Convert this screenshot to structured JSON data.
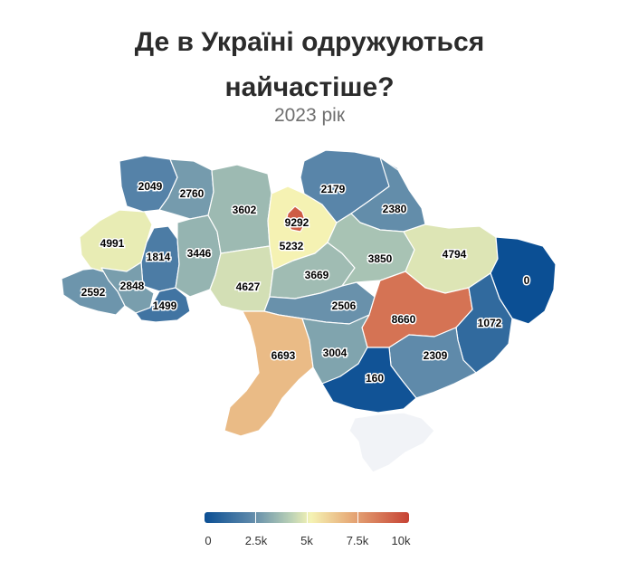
{
  "title_lines": [
    "Де в Україні одружуються",
    "найчастіше?"
  ],
  "subtitle": "2023 рік",
  "colors": {
    "min": "#0b4f94",
    "low": "#5a86a9",
    "mid_low": "#b9d0b6",
    "mid": "#f5f3b4",
    "mid_high": "#e8b07c",
    "max": "#c64234",
    "no_data": "#f1f3f7"
  },
  "legend": {
    "min": 0,
    "max": 10000,
    "ticks": [
      {
        "value": 0,
        "label": "0"
      },
      {
        "value": 2500,
        "label": "2.5k"
      },
      {
        "value": 5000,
        "label": "5k"
      },
      {
        "value": 7500,
        "label": "7.5k"
      },
      {
        "value": 10000,
        "label": "10k"
      }
    ]
  },
  "regions": [
    {
      "id": "volyn",
      "label": "2049",
      "value": 2049
    },
    {
      "id": "rivne",
      "label": "2760",
      "value": 2760
    },
    {
      "id": "zhytomyr",
      "label": "3602",
      "value": 3602
    },
    {
      "id": "kyiv-city",
      "label": "9292",
      "value": 9292
    },
    {
      "id": "kyiv-oblast",
      "label": "5232",
      "value": 5232
    },
    {
      "id": "chernihiv",
      "label": "2179",
      "value": 2179
    },
    {
      "id": "sumy",
      "label": "2380",
      "value": 2380
    },
    {
      "id": "lviv",
      "label": "4991",
      "value": 4991
    },
    {
      "id": "ternopil",
      "label": "1814",
      "value": 1814
    },
    {
      "id": "khmelnytskyi",
      "label": "3446",
      "value": 3446
    },
    {
      "id": "vinnytsia",
      "label": "4627",
      "value": 4627
    },
    {
      "id": "cherkasy",
      "label": "3669",
      "value": 3669
    },
    {
      "id": "poltava",
      "label": "3850",
      "value": 3850
    },
    {
      "id": "kharkiv",
      "label": "4794",
      "value": 4794
    },
    {
      "id": "luhansk",
      "label": "0",
      "value": 0
    },
    {
      "id": "zakarpattia",
      "label": "2592",
      "value": 2592
    },
    {
      "id": "ivano-frankivsk",
      "label": "2848",
      "value": 2848
    },
    {
      "id": "chernivtsi",
      "label": "1499",
      "value": 1499
    },
    {
      "id": "kirovohrad",
      "label": "2506",
      "value": 2506
    },
    {
      "id": "dnipropetrovsk",
      "label": "8660",
      "value": 8660
    },
    {
      "id": "donetsk",
      "label": "1072",
      "value": 1072
    },
    {
      "id": "odesa",
      "label": "6693",
      "value": 6693
    },
    {
      "id": "mykolaiv",
      "label": "3004",
      "value": 3004
    },
    {
      "id": "zaporizhzhia",
      "label": "2309",
      "value": 2309
    },
    {
      "id": "kherson",
      "label": "160",
      "value": 160
    },
    {
      "id": "crimea",
      "label": "",
      "value": null
    }
  ]
}
